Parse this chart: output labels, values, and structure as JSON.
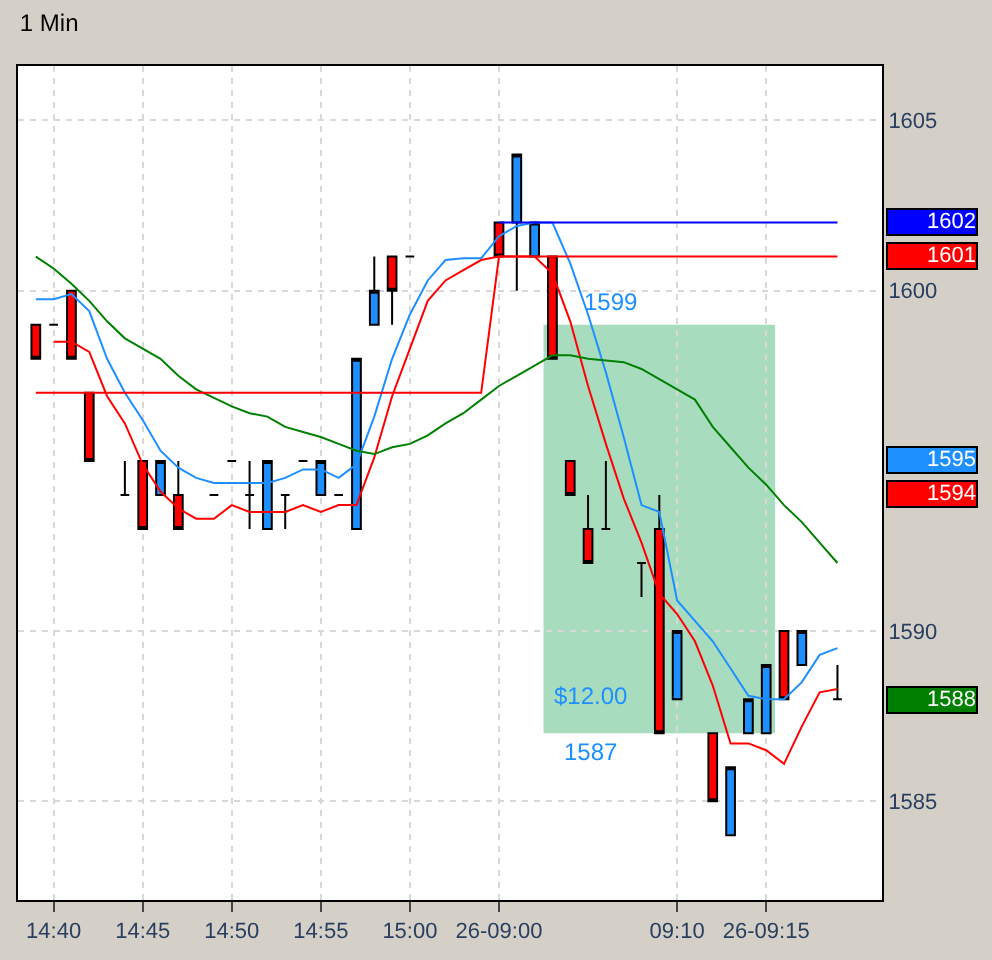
{
  "chart_data": {
    "type": "candlestick",
    "title": "1 Min",
    "categories": [
      null,
      "14:40",
      null,
      null,
      null,
      null,
      "14:45",
      null,
      null,
      null,
      null,
      "14:50",
      null,
      null,
      null,
      null,
      "14:55",
      null,
      null,
      null,
      null,
      "15:00",
      null,
      null,
      null,
      null,
      "26-09:00",
      null,
      null,
      null,
      null,
      null,
      null,
      null,
      null,
      null,
      "09:10",
      null,
      null,
      null,
      null,
      "26-09:15",
      null,
      null,
      null,
      null
    ],
    "ohlc": [
      [
        1599,
        1599,
        1598,
        1598
      ],
      [
        1599,
        1599,
        1599,
        1599
      ],
      [
        1600,
        1600,
        1598,
        1598
      ],
      [
        1597,
        1597,
        1595,
        1595
      ],
      null,
      [
        1594,
        1595,
        1594,
        1594
      ],
      [
        1595,
        1595,
        1593,
        1593
      ],
      [
        1594,
        1595,
        1594,
        1595
      ],
      [
        1594,
        1595,
        1593,
        1593
      ],
      null,
      [
        1594,
        1594,
        1594,
        1594
      ],
      [
        1595,
        1595,
        1595,
        1595
      ],
      [
        1594,
        1595,
        1593,
        1594
      ],
      [
        1593,
        1595,
        1593,
        1595
      ],
      [
        1594,
        1594,
        1593,
        1594
      ],
      [
        1595,
        1595,
        1595,
        1595
      ],
      [
        1594,
        1595,
        1594,
        1595
      ],
      [
        1594,
        1594,
        1594,
        1594
      ],
      [
        1593,
        1598,
        1593,
        1598
      ],
      [
        1599,
        1601,
        1599,
        1600
      ],
      [
        1601,
        1601,
        1599,
        1600
      ],
      [
        1601,
        1601,
        1601,
        1601
      ],
      null,
      null,
      null,
      null,
      [
        1602,
        1602,
        1601,
        1601
      ],
      [
        1602,
        1604,
        1600,
        1604
      ],
      [
        1601,
        1602,
        1601,
        1602
      ],
      [
        1601,
        1601,
        1598,
        1598
      ],
      [
        1595,
        1595,
        1594,
        1594
      ],
      [
        1593,
        1594,
        1592,
        1592
      ],
      [
        1593,
        1595,
        1593,
        1593
      ],
      null,
      [
        1592,
        1592,
        1591,
        1592
      ],
      [
        1593,
        1594,
        1587,
        1587
      ],
      [
        1588,
        1590,
        1588,
        1590
      ],
      null,
      [
        1587,
        1587,
        1585,
        1585
      ],
      [
        1584,
        1586,
        1584,
        1586
      ],
      [
        1587,
        1588,
        1587,
        1588
      ],
      [
        1587,
        1589,
        1587,
        1589
      ],
      [
        1590,
        1590,
        1588,
        1588
      ],
      [
        1589,
        1590,
        1589,
        1590
      ],
      null,
      [
        1588,
        1589,
        1588,
        1588
      ]
    ],
    "series": [
      {
        "type": "line",
        "color": "#1e8fff",
        "values": [
          1599.75,
          1599.75,
          1599.9,
          1599.4,
          1598.0,
          1597.0,
          1596.2,
          1595.3,
          1594.8,
          1594.5,
          1594.35,
          1594.35,
          1594.35,
          1594.35,
          1594.5,
          1594.75,
          1594.75,
          1594.5,
          1594.9,
          1596.3,
          1598.0,
          1599.3,
          1600.3,
          1600.9,
          1600.95,
          1600.95,
          1601.6,
          1601.9,
          1602,
          1602,
          1600.8,
          1599.3,
          1597.6,
          1595.7,
          1593.7,
          1593.5,
          1590.9,
          1590.3,
          1589.7,
          1588.9,
          1588.1,
          1588,
          1588,
          1588.5,
          1589.3,
          1589.5
        ]
      },
      {
        "type": "line",
        "color": "#ff0000",
        "values": [
          null,
          1598.5,
          1598.5,
          1598.2,
          1596.9,
          1596.1,
          1594.9,
          1594.1,
          1593.6,
          1593.3,
          1593.3,
          1593.7,
          1593.5,
          1593.5,
          1593.5,
          1593.7,
          1593.5,
          1593.7,
          1593.7,
          1595.1,
          1596.9,
          1598.3,
          1599.7,
          1600.3,
          1600.6,
          1600.9,
          1601,
          1601,
          1601,
          1600.5,
          1599.1,
          1597.2,
          1595.5,
          1593.9,
          1592.6,
          1591.1,
          1590.5,
          1589.7,
          1588.4,
          1586.7,
          1586.7,
          1586.5,
          1586.1,
          1587.2,
          1588.2,
          1588.3
        ]
      },
      {
        "type": "line",
        "color": "#008000",
        "values": [
          1601,
          1600.65,
          1600.2,
          1599.7,
          1599.1,
          1598.6,
          1598.3,
          1598,
          1597.5,
          1597.1,
          1596.85,
          1596.6,
          1596.4,
          1596.3,
          1596,
          1595.85,
          1595.7,
          1595.5,
          1595.3,
          1595.2,
          1595.4,
          1595.5,
          1595.75,
          1596.1,
          1596.4,
          1596.8,
          1597.2,
          1597.5,
          1597.8,
          1598.1,
          1598.1,
          1598,
          1597.95,
          1597.9,
          1597.7,
          1597.4,
          1597.1,
          1596.8,
          1596,
          1595.4,
          1594.8,
          1594.3,
          1593.7,
          1593.2,
          1592.6,
          1592
        ]
      },
      {
        "type": "line",
        "color": "#ff0000",
        "values": [
          1597,
          1597,
          1597,
          1597,
          1597,
          1597,
          1597,
          1597,
          1597,
          1597,
          1597,
          1597,
          1597,
          1597,
          1597,
          1597,
          1597,
          1597,
          1597,
          1597,
          1597,
          1597,
          1597,
          1597,
          1597,
          1597,
          1601,
          1601,
          1601,
          1601,
          1601,
          1601,
          1601,
          1601,
          1601,
          1601,
          1601,
          1601,
          1601,
          1601,
          1601,
          1601,
          1601,
          1601,
          1601,
          1601
        ]
      },
      {
        "type": "line",
        "color": "#0000ff",
        "values": [
          null,
          null,
          null,
          null,
          null,
          null,
          null,
          null,
          null,
          null,
          null,
          null,
          null,
          null,
          null,
          null,
          null,
          null,
          null,
          null,
          null,
          null,
          null,
          null,
          null,
          null,
          1602,
          1602,
          1602,
          1602,
          1602,
          1602,
          1602,
          1602,
          1602,
          1602,
          1602,
          1602,
          1602,
          1602,
          1602,
          1602,
          1602,
          1602,
          1602,
          1602
        ]
      }
    ],
    "bands": [
      {
        "axis": "y",
        "from": 1587,
        "to": 1599,
        "color": "#9fd8b8"
      }
    ],
    "annotations": [
      "1599",
      "1587",
      "$12.00",
      "1602",
      "1601",
      "1595",
      "1594",
      "1588"
    ],
    "ylim": [
      1582.1,
      1606.6
    ],
    "yticks": [
      1585,
      1590,
      1600,
      1605
    ],
    "grid": true
  }
}
